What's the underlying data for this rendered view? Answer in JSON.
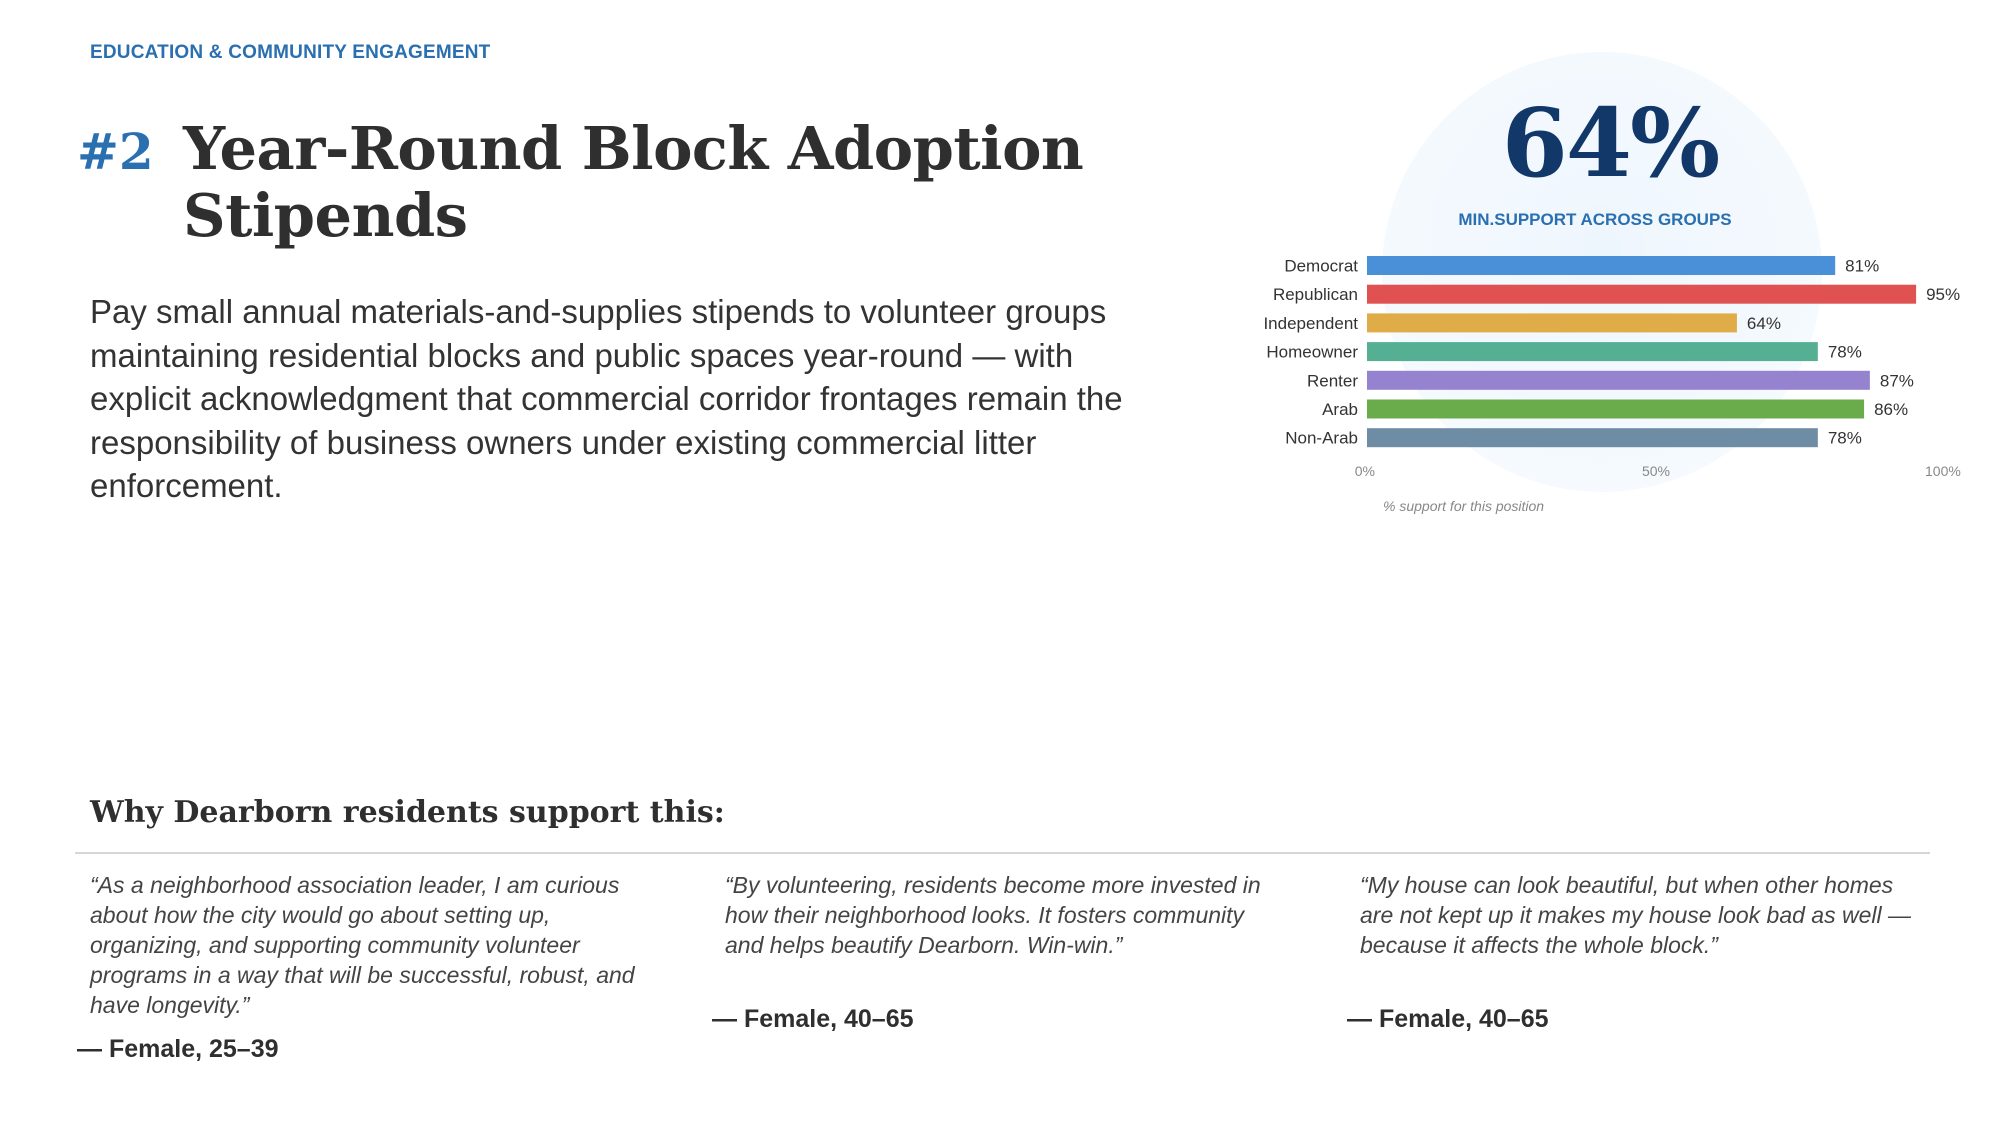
{
  "header": {
    "section_label": "EDUCATION & COMMUNITY ENGAGEMENT",
    "number": "#2",
    "title": "Year-Round Block Adoption Stipends"
  },
  "description": "Pay small annual materials-and-supplies stipends to volunteer groups maintaining residential blocks and public spaces year-round — with explicit acknowledgment that commercial corridor frontages remain the responsibility of business owners under existing commercial litter enforcement.",
  "summary": {
    "big_value": "64%",
    "label": "MIN.SUPPORT ACROSS GROUPS"
  },
  "chart_data": {
    "type": "bar",
    "orientation": "horizontal",
    "categories": [
      "Democrat",
      "Republican",
      "Independent",
      "Homeowner",
      "Renter",
      "Arab",
      "Non-Arab"
    ],
    "values": [
      81,
      95,
      64,
      78,
      87,
      86,
      78
    ],
    "value_labels": [
      "81%",
      "95%",
      "64%",
      "78%",
      "87%",
      "86%",
      "78%"
    ],
    "colors": [
      "#4a90d9",
      "#e05252",
      "#e0ac48",
      "#55b093",
      "#9583cf",
      "#6aac4c",
      "#6e8ca4"
    ],
    "xlim": [
      0,
      100
    ],
    "x_ticks": [
      "0%",
      "50%",
      "100%"
    ],
    "xlabel": "% support for this position",
    "grid": false,
    "legend": "none"
  },
  "why": {
    "title": "Why Dearborn residents support this:",
    "quotes": [
      {
        "text": "“As a neighborhood association leader, I am curious about how the city would go about setting up, organizing, and supporting community volunteer programs in a way that will be successful, robust, and have longevity.”",
        "attribution": "— Female, 25–39"
      },
      {
        "text": "“By volunteering, residents become more invested in how their neighborhood looks. It fosters community and helps beautify Dearborn. Win-win.”",
        "attribution": "— Female, 40–65"
      },
      {
        "text": "“My house can look beautiful, but when other homes are not kept up it makes my house look bad as well — because it affects the whole block.”",
        "attribution": "— Female, 40–65"
      }
    ]
  }
}
